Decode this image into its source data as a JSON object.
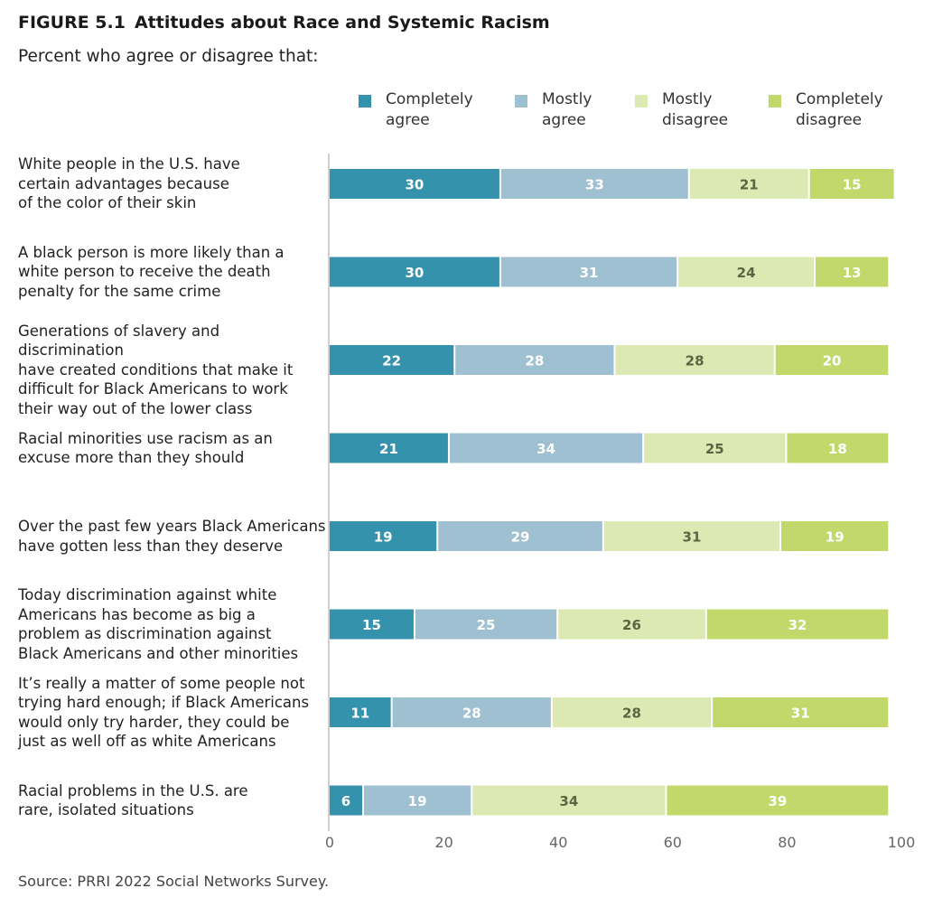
{
  "figure": {
    "number": "FIGURE 5.1",
    "title": "Attitudes about Race and Systemic Racism",
    "subtitle": "Percent who agree or disagree that:",
    "source": "Source: PRRI 2022 Social Networks Survey."
  },
  "legend": [
    {
      "line1": "Completely",
      "line2": "agree"
    },
    {
      "line1": "Mostly",
      "line2": "agree"
    },
    {
      "line1": "Mostly",
      "line2": "disagree"
    },
    {
      "line1": "Completely",
      "line2": "disagree"
    }
  ],
  "chart_data": {
    "type": "bar",
    "orientation": "horizontal",
    "stacked": true,
    "title": "Attitudes about Race and Systemic Racism",
    "categories": [
      "White people in the U.S. have certain advantages because of the color of their skin",
      "A black person is more likely than a white person to receive the death penalty for the same crime",
      "Generations of slavery and discrimination have created conditions that make it difficult for Black Americans to work their way out of the lower class",
      "Racial minorities use racism as an excuse more than they should",
      "Over the past few years Black Americans have gotten less than they deserve",
      "Today discrimination against white Americans has become as big a problem as discrimination against Black Americans and other minorities",
      "It’s really a matter of some people not trying hard enough; if Black Americans would only try harder, they could be just as well off as white Americans",
      "Racial problems in the U.S. are rare, isolated situations"
    ],
    "category_lines": [
      [
        "White people in the U.S. have",
        "certain advantages because",
        "of the color of their skin"
      ],
      [
        "A black person is more likely than a",
        "white person to receive the death",
        "penalty for the same crime"
      ],
      [
        "Generations of slavery and discrimination",
        "have created conditions that make it",
        "difficult for Black Americans to work",
        "their way out of the lower class"
      ],
      [
        "Racial minorities use racism as an",
        "excuse more than they should"
      ],
      [
        "Over the past few years Black Americans",
        "have gotten less than they deserve"
      ],
      [
        "Today discrimination against white",
        "Americans has become as big a",
        "problem as discrimination against",
        "Black Americans and other minorities"
      ],
      [
        "It’s really a matter of some people not",
        "trying hard enough; if Black Americans",
        "would only try harder, they could be",
        "just as well off as white Americans"
      ],
      [
        "Racial problems in the U.S. are",
        "rare, isolated situations"
      ]
    ],
    "series": [
      {
        "name": "Completely agree",
        "color": "#3592ad",
        "label_color": "#ffffff",
        "values": [
          30,
          30,
          22,
          21,
          19,
          15,
          11,
          6
        ]
      },
      {
        "name": "Mostly agree",
        "color": "#9fc0d0",
        "label_color": "#ffffff",
        "values": [
          33,
          31,
          28,
          34,
          29,
          25,
          28,
          19
        ]
      },
      {
        "name": "Mostly disagree",
        "color": "#dde9b2",
        "label_color": "#5c6443",
        "values": [
          21,
          24,
          28,
          25,
          31,
          26,
          28,
          34
        ]
      },
      {
        "name": "Completely disagree",
        "color": "#c3d86b",
        "label_color": "#ffffff",
        "values": [
          15,
          13,
          20,
          18,
          19,
          32,
          31,
          39
        ]
      }
    ],
    "xlim": [
      0,
      100
    ],
    "xticks": [
      0,
      20,
      40,
      60,
      80,
      100
    ],
    "grid": false,
    "legend_position": "top-right"
  }
}
